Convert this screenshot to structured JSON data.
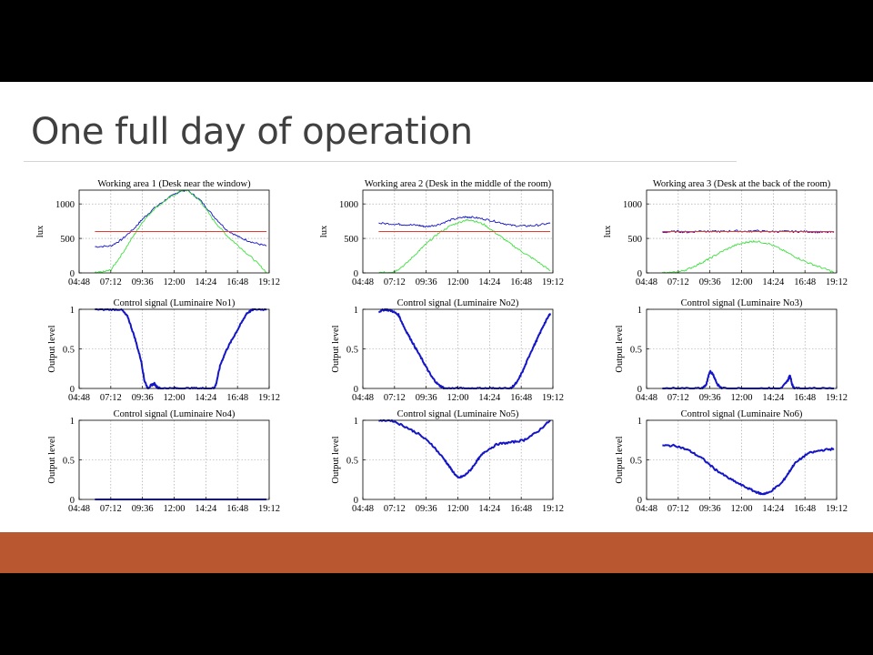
{
  "slide": {
    "title": "One full day of operation"
  },
  "colors": {
    "blue": "#1515c8",
    "green": "#3ee03e",
    "red": "#e63b2e",
    "orange_band": "#b85730",
    "orange_line": "#e2792d"
  },
  "chart_data": [
    {
      "type": "line",
      "title": "Working area 1 (Desk near the window)",
      "ylabel": "lux",
      "xticks": [
        "04:48",
        "07:12",
        "09:36",
        "12:00",
        "14:24",
        "16:48",
        "19:12"
      ],
      "xlim": [
        "04:48",
        "19:12"
      ],
      "ylim": [
        0,
        1200
      ],
      "yticks": [
        "0",
        "500",
        "1000"
      ],
      "grid": true,
      "series": [
        {
          "color": "#1515c8",
          "x": [
            "06:00",
            "07:12",
            "08:00",
            "09:00",
            "09:36",
            "10:30",
            "11:30",
            "12:30",
            "13:00",
            "14:00",
            "15:00",
            "16:00",
            "17:00",
            "18:00",
            "19:00"
          ],
          "values": [
            380,
            390,
            480,
            650,
            780,
            940,
            1080,
            1190,
            1200,
            1050,
            820,
            620,
            510,
            440,
            390
          ]
        },
        {
          "color": "#3ee03e",
          "x": [
            "06:00",
            "06:30",
            "07:12",
            "08:00",
            "09:00",
            "09:36",
            "10:30",
            "11:30",
            "12:30",
            "13:00",
            "14:00",
            "15:00",
            "16:00",
            "17:00",
            "18:00",
            "19:00"
          ],
          "values": [
            0,
            10,
            40,
            260,
            560,
            740,
            930,
            1070,
            1190,
            1200,
            1040,
            760,
            540,
            370,
            200,
            10
          ]
        },
        {
          "color": "#e63b2e",
          "x": [
            "06:00",
            "19:00"
          ],
          "values": [
            600,
            600
          ]
        }
      ]
    },
    {
      "type": "line",
      "title": "Working area 2 (Desk in the middle of the room)",
      "ylabel": "lux",
      "xticks": [
        "04:48",
        "07:12",
        "09:36",
        "12:00",
        "14:24",
        "16:48",
        "19:12"
      ],
      "xlim": [
        "04:48",
        "19:12"
      ],
      "ylim": [
        0,
        1200
      ],
      "yticks": [
        "0",
        "500",
        "1000"
      ],
      "grid": true,
      "series": [
        {
          "color": "#1515c8",
          "x": [
            "06:00",
            "07:12",
            "08:00",
            "09:00",
            "09:36",
            "10:30",
            "11:30",
            "12:30",
            "13:00",
            "14:00",
            "15:00",
            "16:00",
            "17:00",
            "18:00",
            "19:00"
          ],
          "values": [
            720,
            710,
            700,
            690,
            670,
            700,
            770,
            810,
            810,
            780,
            740,
            690,
            680,
            690,
            720
          ]
        },
        {
          "color": "#3ee03e",
          "x": [
            "06:00",
            "06:30",
            "07:12",
            "08:00",
            "09:00",
            "09:36",
            "10:30",
            "11:30",
            "12:30",
            "13:00",
            "14:00",
            "15:00",
            "16:00",
            "17:00",
            "18:00",
            "19:00"
          ],
          "values": [
            0,
            5,
            20,
            120,
            310,
            420,
            570,
            690,
            760,
            770,
            700,
            560,
            420,
            290,
            170,
            30
          ]
        },
        {
          "color": "#e63b2e",
          "x": [
            "06:00",
            "19:00"
          ],
          "values": [
            600,
            600
          ]
        }
      ]
    },
    {
      "type": "line",
      "title": "Working area 3 (Desk at the back of the room)",
      "ylabel": "lux",
      "xticks": [
        "04:48",
        "07:12",
        "09:36",
        "12:00",
        "14:24",
        "16:48",
        "19:12"
      ],
      "xlim": [
        "04:48",
        "19:12"
      ],
      "ylim": [
        0,
        1200
      ],
      "yticks": [
        "0",
        "500",
        "1000"
      ],
      "grid": true,
      "series": [
        {
          "color": "#1515c8",
          "x": [
            "06:00",
            "07:12",
            "08:00",
            "09:00",
            "09:36",
            "10:30",
            "11:30",
            "12:30",
            "13:00",
            "14:00",
            "15:00",
            "16:00",
            "17:00",
            "18:00",
            "19:00"
          ],
          "values": [
            590,
            600,
            590,
            610,
            600,
            600,
            610,
            600,
            610,
            600,
            600,
            600,
            600,
            590,
            590
          ]
        },
        {
          "color": "#3ee03e",
          "x": [
            "06:00",
            "06:30",
            "07:12",
            "08:00",
            "09:00",
            "09:36",
            "10:30",
            "11:30",
            "12:30",
            "13:00",
            "14:00",
            "15:00",
            "16:00",
            "17:00",
            "18:00",
            "19:00"
          ],
          "values": [
            0,
            0,
            10,
            60,
            150,
            210,
            310,
            400,
            450,
            460,
            430,
            340,
            240,
            150,
            80,
            10
          ]
        },
        {
          "color": "#e63b2e",
          "x": [
            "06:00",
            "19:00"
          ],
          "values": [
            600,
            600
          ]
        }
      ]
    },
    {
      "type": "line",
      "title": "Control signal (Luminaire No1)",
      "ylabel": "Output level",
      "xticks": [
        "04:48",
        "07:12",
        "09:36",
        "12:00",
        "14:24",
        "16:48",
        "19:12"
      ],
      "xlim": [
        "04:48",
        "19:12"
      ],
      "ylim": [
        0,
        1
      ],
      "yticks": [
        "0",
        "0.5",
        "1"
      ],
      "grid": true,
      "series": [
        {
          "color": "#1515c8",
          "x": [
            "06:00",
            "07:00",
            "08:00",
            "08:30",
            "09:00",
            "09:30",
            "09:45",
            "10:00",
            "10:15",
            "10:30",
            "10:45",
            "11:00",
            "12:00",
            "13:00",
            "14:00",
            "15:00",
            "15:10",
            "15:30",
            "16:00",
            "16:30",
            "17:00",
            "17:30",
            "18:00",
            "19:00"
          ],
          "values": [
            1,
            1,
            1,
            0.9,
            0.65,
            0.35,
            0.1,
            0,
            0.04,
            0.06,
            0.01,
            0,
            0,
            0,
            0,
            0,
            0.05,
            0.3,
            0.5,
            0.65,
            0.8,
            0.95,
            1,
            1
          ]
        }
      ]
    },
    {
      "type": "line",
      "title": "Control signal (Luminaire No2)",
      "ylabel": "Output level",
      "xticks": [
        "04:48",
        "07:12",
        "09:36",
        "12:00",
        "14:24",
        "16:48",
        "19:12"
      ],
      "xlim": [
        "04:48",
        "19:12"
      ],
      "ylim": [
        0,
        1
      ],
      "yticks": [
        "0",
        "0.5",
        "1"
      ],
      "grid": true,
      "series": [
        {
          "color": "#1515c8",
          "x": [
            "06:00",
            "06:30",
            "07:00",
            "07:30",
            "08:00",
            "08:30",
            "09:00",
            "09:30",
            "10:00",
            "10:30",
            "11:00",
            "12:00",
            "13:00",
            "14:00",
            "15:00",
            "16:00",
            "16:30",
            "17:00",
            "17:30",
            "18:00",
            "18:30",
            "19:00"
          ],
          "values": [
            0.97,
            1,
            0.98,
            0.93,
            0.75,
            0.6,
            0.45,
            0.3,
            0.15,
            0.05,
            0,
            0,
            0,
            0,
            0,
            0,
            0.08,
            0.25,
            0.45,
            0.62,
            0.8,
            0.95
          ]
        }
      ]
    },
    {
      "type": "line",
      "title": "Control signal (Luminaire No3)",
      "ylabel": "Output level",
      "xticks": [
        "04:48",
        "07:12",
        "09:36",
        "12:00",
        "14:24",
        "16:48",
        "19:12"
      ],
      "xlim": [
        "04:48",
        "19:12"
      ],
      "ylim": [
        0,
        1
      ],
      "yticks": [
        "0",
        "0.5",
        "1"
      ],
      "grid": true,
      "series": [
        {
          "color": "#1515c8",
          "x": [
            "06:00",
            "08:00",
            "09:00",
            "09:20",
            "09:36",
            "09:50",
            "10:10",
            "10:30",
            "12:00",
            "14:00",
            "15:00",
            "15:30",
            "15:40",
            "15:50",
            "16:00",
            "17:00",
            "19:00"
          ],
          "values": [
            0,
            0,
            0,
            0.05,
            0.22,
            0.18,
            0.05,
            0,
            0,
            0,
            0,
            0.1,
            0.17,
            0.05,
            0,
            0,
            0
          ]
        }
      ]
    },
    {
      "type": "line",
      "title": "Control signal (Luminaire No4)",
      "ylabel": "Output level",
      "xticks": [
        "04:48",
        "07:12",
        "09:36",
        "12:00",
        "14:24",
        "16:48",
        "19:12"
      ],
      "xlim": [
        "04:48",
        "19:12"
      ],
      "ylim": [
        0,
        1
      ],
      "yticks": [
        "0",
        "0.5",
        "1"
      ],
      "grid": true,
      "series": [
        {
          "color": "#1515c8",
          "x": [
            "06:00",
            "19:00"
          ],
          "values": [
            0,
            0
          ]
        }
      ]
    },
    {
      "type": "line",
      "title": "Control signal (Luminaire No5)",
      "ylabel": "Output level",
      "xticks": [
        "04:48",
        "07:12",
        "09:36",
        "12:00",
        "14:24",
        "16:48",
        "19:12"
      ],
      "xlim": [
        "04:48",
        "19:12"
      ],
      "ylim": [
        0,
        1
      ],
      "yticks": [
        "0",
        "0.5",
        "1"
      ],
      "grid": true,
      "series": [
        {
          "color": "#1515c8",
          "x": [
            "06:00",
            "07:00",
            "08:00",
            "09:00",
            "10:00",
            "11:00",
            "11:30",
            "12:00",
            "12:30",
            "13:00",
            "13:30",
            "14:00",
            "15:00",
            "16:00",
            "17:00",
            "18:00",
            "19:00"
          ],
          "values": [
            1,
            1,
            0.92,
            0.83,
            0.7,
            0.5,
            0.38,
            0.27,
            0.3,
            0.38,
            0.5,
            0.6,
            0.7,
            0.72,
            0.75,
            0.85,
            1
          ]
        }
      ]
    },
    {
      "type": "line",
      "title": "Control signal (Luminaire No6)",
      "ylabel": "Output level",
      "xticks": [
        "04:48",
        "07:12",
        "09:36",
        "12:00",
        "14:24",
        "16:48",
        "19:12"
      ],
      "xlim": [
        "04:48",
        "19:12"
      ],
      "ylim": [
        0,
        1
      ],
      "yticks": [
        "0",
        "0.5",
        "1"
      ],
      "grid": true,
      "series": [
        {
          "color": "#1515c8",
          "x": [
            "06:00",
            "07:00",
            "08:00",
            "09:00",
            "10:00",
            "11:00",
            "12:00",
            "13:00",
            "13:30",
            "14:00",
            "15:00",
            "15:30",
            "16:00",
            "17:00",
            "18:00",
            "19:00"
          ],
          "values": [
            0.68,
            0.68,
            0.62,
            0.52,
            0.38,
            0.27,
            0.18,
            0.1,
            0.07,
            0.08,
            0.2,
            0.32,
            0.45,
            0.58,
            0.62,
            0.64
          ]
        }
      ]
    }
  ]
}
